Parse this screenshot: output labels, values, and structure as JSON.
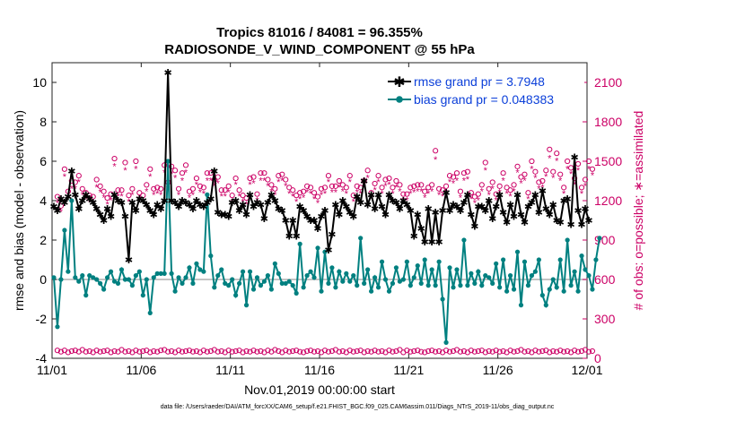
{
  "chart_data": {
    "type": "line",
    "title": "Tropics 81016 / 84081 = 96.355%",
    "subtitle": "RADIOSONDE_V_WIND_COMPONENT @ 55 hPa",
    "xlabel": "Nov.01,2019 00:00:00 start",
    "ylabel": "rmse and bias (model - observation)",
    "ylabel_right": "# of obs: o=possible; ∗=assimilated",
    "x_tick_labels": [
      "11/01",
      "11/06",
      "11/11",
      "11/16",
      "11/21",
      "11/26",
      "12/01"
    ],
    "x_tick_days": [
      0,
      5,
      10,
      15,
      20,
      25,
      30
    ],
    "xlim": [
      0,
      30
    ],
    "ylim": [
      -4,
      11
    ],
    "y_ticks": [
      -4,
      -2,
      0,
      2,
      4,
      6,
      8,
      10
    ],
    "ylim_right": [
      0,
      2250
    ],
    "y_ticks_right": [
      0,
      300,
      600,
      900,
      1200,
      1500,
      1800,
      2100
    ],
    "legend_position": "top-right",
    "colors": {
      "rmse": "#000000",
      "bias": "#008080",
      "obs": "#cc0066",
      "zero_line": "#b0b0b0",
      "legend_text": "#0b3fd9"
    },
    "x_step_days": 0.25,
    "series": [
      {
        "name": "rmse grand pr = 3.7948",
        "values": [
          3.7,
          3.5,
          4.1,
          3.9,
          4.2,
          5.5,
          4.3,
          3.6,
          4.0,
          4.3,
          4.1,
          3.9,
          3.6,
          3.3,
          3.0,
          3.6,
          3.2,
          4.3,
          4.0,
          3.9,
          3.2,
          1.0,
          3.9,
          3.5,
          4.1,
          4.0,
          3.8,
          3.5,
          3.3,
          3.8,
          3.6,
          4.0,
          10.5,
          4.0,
          3.9,
          3.7,
          4.0,
          3.9,
          3.8,
          3.6,
          4.0,
          3.8,
          3.7,
          3.9,
          4.1,
          5.5,
          3.4,
          3.3,
          3.3,
          3.2,
          3.9,
          4.0,
          3.5,
          3.8,
          3.3,
          4.3,
          3.7,
          3.9,
          3.8,
          3.1,
          3.9,
          4.3,
          4.0,
          3.6,
          3.5,
          3.0,
          2.2,
          3.0,
          2.2,
          3.7,
          3.5,
          3.2,
          3.0,
          3.0,
          2.6,
          3.2,
          3.5,
          1.5,
          2.3,
          3.8,
          3.3,
          4.0,
          3.7,
          3.4,
          3.2,
          4.2,
          3.9,
          5.0,
          3.8,
          4.3,
          3.6,
          4.3,
          3.7,
          3.3,
          4.3,
          4.0,
          3.9,
          3.6,
          4.0,
          3.8,
          3.5,
          2.2,
          3.3,
          2.6,
          1.9,
          3.6,
          1.9,
          3.4,
          1.9,
          3.5,
          4.4,
          3.5,
          3.8,
          3.7,
          3.5,
          3.9,
          4.3,
          3.3,
          2.7,
          3.7,
          3.7,
          3.5,
          4.0,
          3.1,
          3.7,
          4.3,
          3.4,
          2.9,
          3.8,
          3.2,
          4.3,
          3.3,
          2.9,
          3.7,
          3.9,
          4.3,
          3.4,
          4.5,
          3.6,
          3.3,
          3.8,
          3.0,
          2.9,
          4.0,
          4.1,
          2.8,
          6.2,
          3.5,
          2.8,
          3.6,
          3.0
        ]
      },
      {
        "name": "bias grand pr = 0.048383",
        "values": [
          0.1,
          -2.4,
          0.0,
          2.5,
          0.4,
          4.0,
          0.1,
          -0.1,
          0.2,
          -0.8,
          0.2,
          0.1,
          0.0,
          -0.2,
          -0.5,
          0.1,
          0.4,
          -0.1,
          -0.2,
          0.5,
          0.0,
          0.0,
          -0.3,
          0.2,
          0.4,
          -0.8,
          0.0,
          -1.7,
          0.1,
          0.3,
          0.3,
          0.3,
          6.0,
          0.3,
          -0.6,
          0.1,
          -0.2,
          0.1,
          0.6,
          -0.2,
          0.8,
          0.5,
          0.4,
          4.3,
          1.2,
          -0.4,
          0.2,
          0.5,
          -0.2,
          -0.3,
          0.0,
          -0.8,
          -0.2,
          0.4,
          -1.3,
          0.4,
          -0.5,
          0.1,
          -0.3,
          -0.1,
          0.2,
          -0.5,
          0.8,
          0.3,
          -0.2,
          -0.2,
          -0.1,
          -0.3,
          -0.7,
          1.8,
          -0.4,
          0.2,
          0.4,
          0.1,
          1.6,
          -0.6,
          1.4,
          -0.2,
          0.6,
          -0.4,
          0.4,
          -0.1,
          0.3,
          -0.1,
          0.2,
          -0.3,
          2.1,
          -0.2,
          0.5,
          -0.6,
          0.1,
          -0.4,
          0.9,
          0.0,
          -0.6,
          -0.2,
          0.6,
          -0.1,
          0.0,
          0.9,
          -0.3,
          0.1,
          0.7,
          -0.2,
          1.0,
          -0.3,
          0.5,
          -0.3,
          0.9,
          -1.0,
          -3.2,
          0.6,
          -0.4,
          0.5,
          -0.3,
          2.0,
          -0.3,
          0.3,
          -0.2,
          0.4,
          -0.3,
          0.2,
          0.1,
          -0.2,
          0.8,
          -0.4,
          1.0,
          -0.6,
          0.2,
          -0.5,
          1.4,
          -1.3,
          0.9,
          -0.3,
          0.2,
          0.4,
          1.0,
          -0.8,
          -1.3,
          -0.5,
          0.0,
          -0.4,
          1.0,
          -0.6,
          2.0,
          -0.3,
          0.4,
          -0.6,
          1.2,
          0.5,
          0.2,
          -0.5,
          1.0,
          2.1
        ]
      },
      {
        "name": "obs possible",
        "values": [
          1230,
          1160,
          1440,
          1270,
          1350,
          1340,
          1390,
          1290,
          1260,
          1240,
          1230,
          1360,
          1310,
          1270,
          1220,
          1250,
          1520,
          1280,
          1280,
          1490,
          1240,
          1290,
          1500,
          1260,
          1240,
          1320,
          1440,
          1290,
          1300,
          1290,
          1470,
          1340,
          1460,
          1430,
          1290,
          1410,
          1470,
          1270,
          1290,
          1370,
          1310,
          1300,
          1410,
          1410,
          1360,
          1380,
          1280,
          1280,
          1310,
          1240,
          1370,
          1280,
          1240,
          1220,
          1370,
          1380,
          1250,
          1410,
          1410,
          1360,
          1320,
          1290,
          1390,
          1400,
          1360,
          1300,
          1280,
          1240,
          1260,
          1270,
          1310,
          1300,
          1260,
          1230,
          1290,
          1300,
          1390,
          1310,
          1310,
          1350,
          1320,
          1300,
          1390,
          1240,
          1310,
          1300,
          1350,
          1430,
          1260,
          1330,
          1390,
          1300,
          1360,
          1370,
          1300,
          1350,
          1320,
          1250,
          1250,
          1300,
          1310,
          1320,
          1320,
          1270,
          1300,
          1320,
          1580,
          1290,
          1280,
          1310,
          1390,
          1380,
          1410,
          1270,
          1410,
          1420,
          1260,
          1230,
          1250,
          1320,
          1490,
          1290,
          1340,
          1250,
          1310,
          1410,
          1300,
          1280,
          1320,
          1460,
          1380,
          1400,
          1260,
          1500,
          1420,
          1340,
          1350,
          1430,
          1590,
          1420,
          1560,
          1400,
          1300,
          1500,
          1450,
          1370,
          1480,
          1300,
          1360,
          1500,
          1440
        ]
      },
      {
        "name": "obs assimilated",
        "values": [
          1190,
          1120,
          1390,
          1230,
          1300,
          1300,
          1350,
          1250,
          1220,
          1200,
          1190,
          1310,
          1270,
          1230,
          1180,
          1210,
          1470,
          1240,
          1240,
          1440,
          1200,
          1250,
          1450,
          1220,
          1200,
          1280,
          1390,
          1250,
          1260,
          1250,
          1420,
          1300,
          1410,
          1380,
          1250,
          1360,
          1420,
          1230,
          1250,
          1330,
          1270,
          1260,
          1360,
          1360,
          1320,
          1340,
          1240,
          1240,
          1270,
          1200,
          1330,
          1240,
          1200,
          1180,
          1330,
          1340,
          1210,
          1360,
          1360,
          1320,
          1280,
          1250,
          1350,
          1360,
          1320,
          1260,
          1240,
          1200,
          1220,
          1230,
          1270,
          1260,
          1220,
          1190,
          1250,
          1260,
          1350,
          1270,
          1270,
          1310,
          1280,
          1260,
          1350,
          1200,
          1270,
          1260,
          1310,
          1380,
          1220,
          1290,
          1350,
          1260,
          1320,
          1330,
          1260,
          1310,
          1280,
          1210,
          1210,
          1260,
          1270,
          1280,
          1280,
          1230,
          1260,
          1280,
          1520,
          1250,
          1240,
          1270,
          1350,
          1340,
          1360,
          1230,
          1360,
          1370,
          1220,
          1190,
          1210,
          1280,
          1440,
          1250,
          1300,
          1210,
          1270,
          1360,
          1260,
          1240,
          1280,
          1420,
          1340,
          1360,
          1220,
          1450,
          1380,
          1300,
          1310,
          1390,
          1530,
          1380,
          1510,
          1360,
          1260,
          1450,
          1410,
          1330,
          1440,
          1260,
          1320,
          1450,
          1400
        ]
      },
      {
        "name": "obs possible (bottom)",
        "values": [
          60,
          50,
          60,
          45,
          55,
          60,
          50,
          65,
          50,
          55,
          45,
          60,
          50,
          55,
          60,
          45,
          55,
          50,
          65,
          50,
          55,
          45,
          60,
          50,
          55,
          60,
          45,
          55,
          50,
          60,
          65,
          50,
          55,
          45,
          60,
          50,
          55,
          60,
          50,
          55,
          45,
          60,
          50,
          55,
          65,
          50,
          55,
          45,
          60,
          50,
          55,
          60,
          45,
          55,
          50,
          60,
          50,
          55,
          45,
          60,
          50,
          65,
          55,
          45,
          60,
          50,
          55,
          60,
          50,
          45,
          55,
          60,
          50,
          55,
          45,
          60,
          50,
          55,
          65,
          50,
          55,
          45,
          60,
          50,
          55,
          60,
          45,
          55,
          50,
          60,
          50,
          55,
          45,
          60,
          50,
          55,
          65,
          45,
          60,
          50,
          55,
          60,
          50,
          45,
          55,
          60,
          50,
          55,
          45,
          60,
          50,
          55,
          65,
          50,
          55,
          45,
          60,
          50,
          55,
          60,
          45,
          55,
          50,
          60,
          50,
          55,
          45,
          60,
          50,
          55,
          65,
          50,
          55,
          45,
          60,
          50,
          55,
          60,
          45,
          55,
          50,
          60,
          50,
          55,
          45,
          60,
          50,
          55,
          65,
          50,
          55
        ]
      }
    ]
  },
  "footer_text": "data file: /Users/raeder/DAI/ATM_forcXX/CAM6_setup/f.e21.FHIST_BGC.f09_025.CAM6assim.011/Diags_NTrS_2019-11/obs_diag_output.nc"
}
